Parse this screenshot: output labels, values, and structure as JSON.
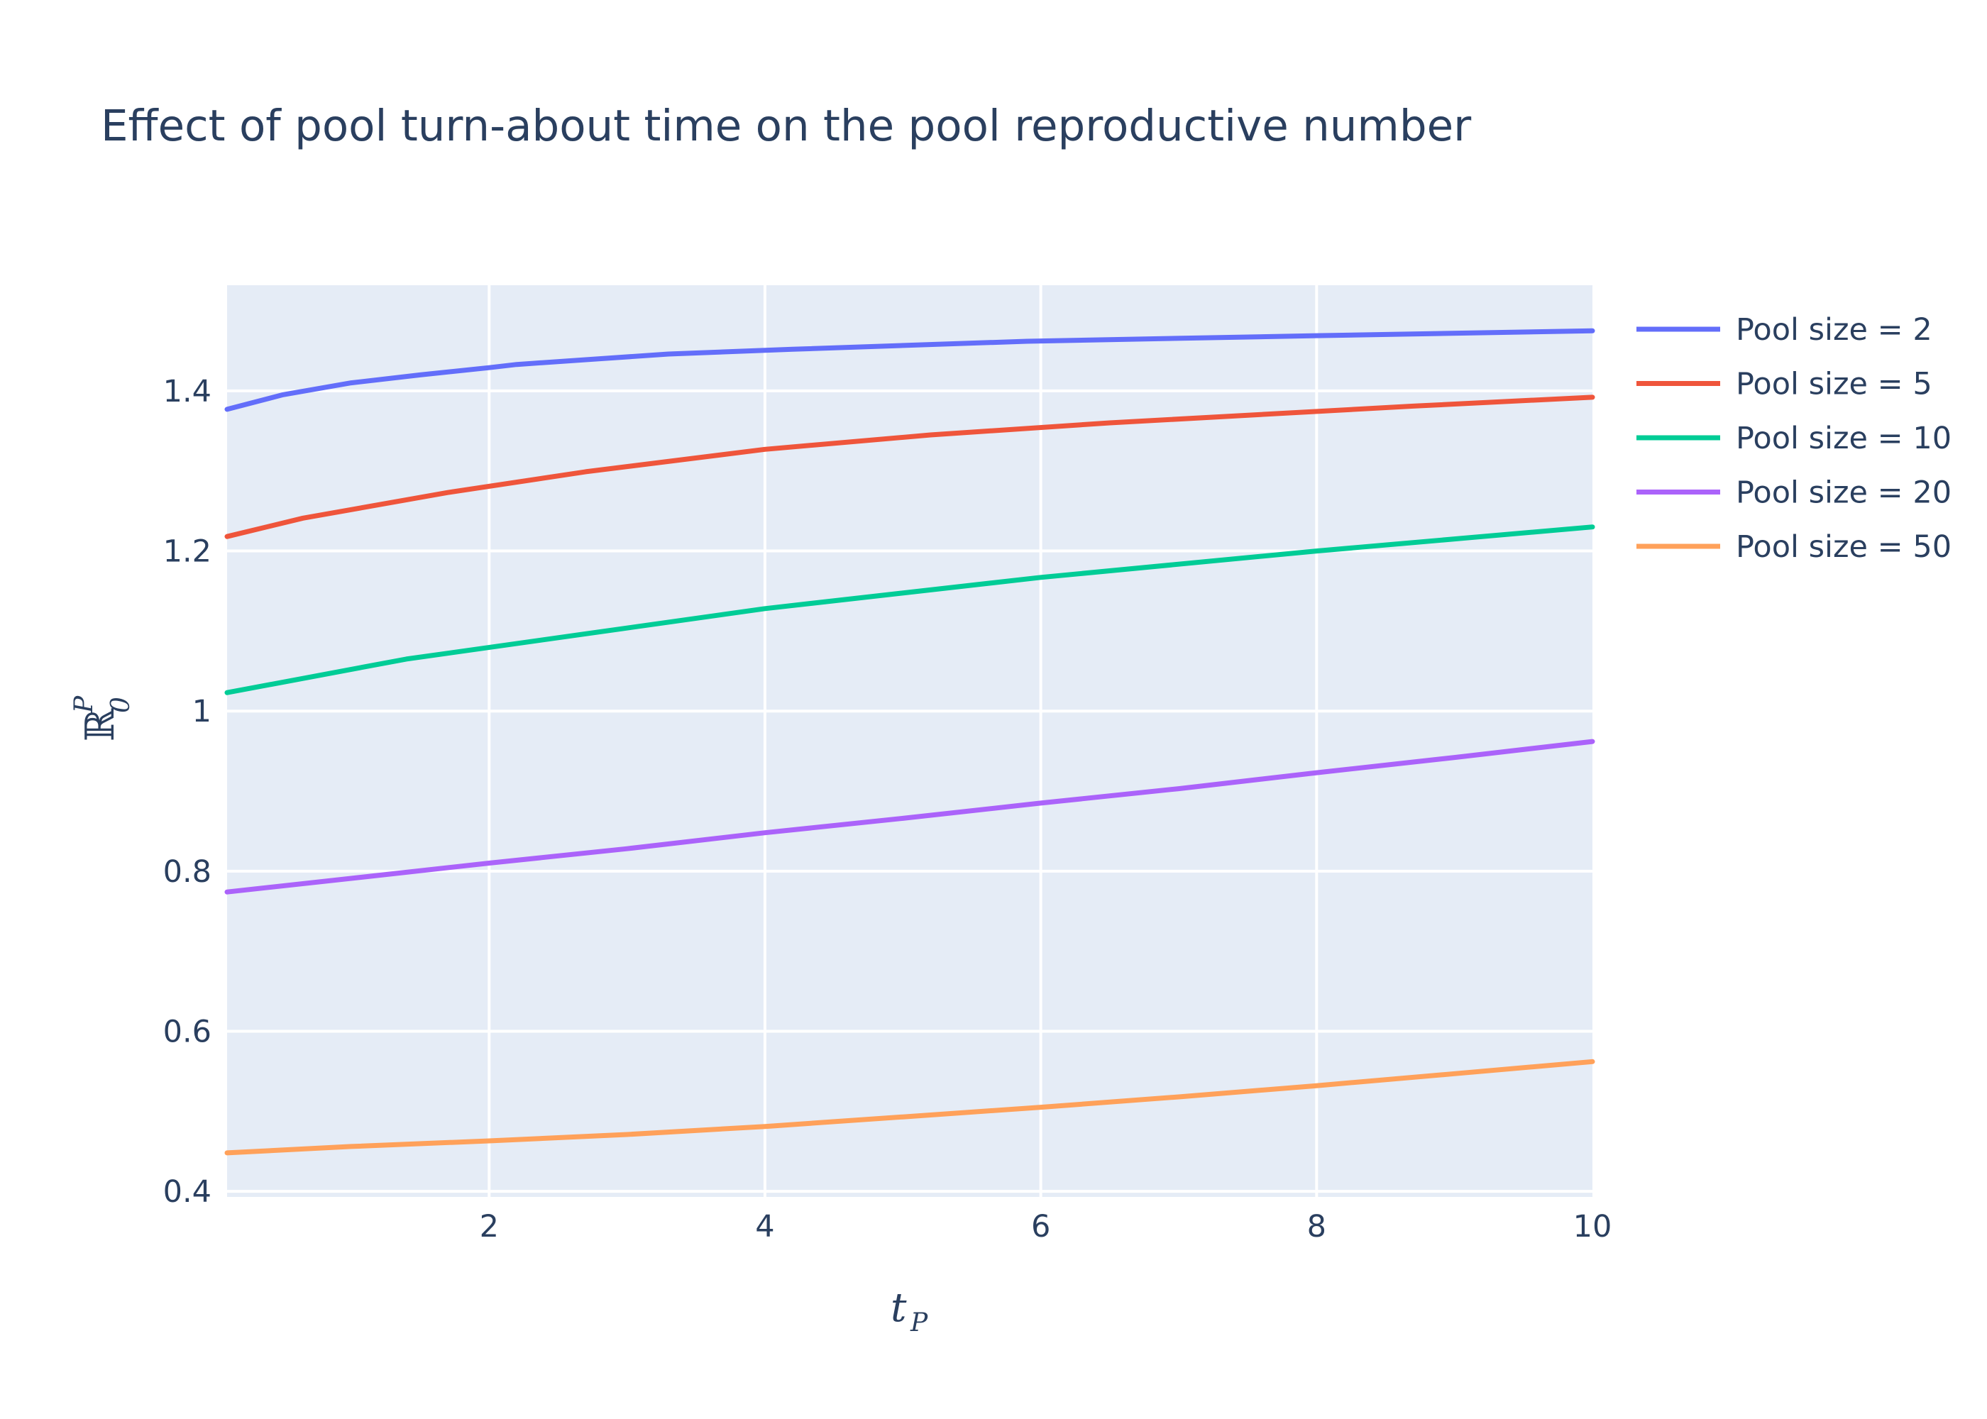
{
  "chart_data": {
    "type": "line",
    "title": "Effect of pool turn-about time on the pool reproductive number",
    "xlabel": {
      "base": "t",
      "sub": "P"
    },
    "ylabel": {
      "base": "ℝ",
      "sub": "0",
      "sup": "P"
    },
    "xlim": [
      0.1,
      10
    ],
    "ylim": [
      0.393,
      1.532
    ],
    "x_ticks": [
      2,
      4,
      6,
      8,
      10
    ],
    "x_tick_labels": [
      "2",
      "4",
      "6",
      "8",
      "10"
    ],
    "y_ticks": [
      0.4,
      0.6,
      0.8,
      1.0,
      1.2,
      1.4
    ],
    "y_tick_labels": [
      "0.4",
      "0.6",
      "0.8",
      "1",
      "1.2",
      "1.4"
    ],
    "grid": true,
    "legend_position": "top-right",
    "background": "#e5ecf6",
    "series": [
      {
        "name": "Pool size = 2",
        "color": "#636efa",
        "x": [
          0.1,
          0.5,
          1,
          1.5,
          2,
          2.2,
          3.3,
          4.2,
          5.9,
          8,
          10
        ],
        "y": [
          1.377,
          1.395,
          1.41,
          1.42,
          1.429,
          1.433,
          1.446,
          1.452,
          1.462,
          1.469,
          1.475
        ]
      },
      {
        "name": "Pool size = 5",
        "color": "#ef553b",
        "x": [
          0.1,
          0.65,
          1.7,
          2.7,
          4,
          5.2,
          6.5,
          8.7,
          10
        ],
        "y": [
          1.218,
          1.241,
          1.273,
          1.299,
          1.327,
          1.345,
          1.36,
          1.381,
          1.392
        ]
      },
      {
        "name": "Pool size = 10",
        "color": "#00cc96",
        "x": [
          0.1,
          1.4,
          4,
          6,
          8,
          10
        ],
        "y": [
          1.023,
          1.065,
          1.128,
          1.167,
          1.2,
          1.23
        ]
      },
      {
        "name": "Pool size = 20",
        "color": "#ab63fa",
        "x": [
          0.1,
          1,
          2,
          3,
          4,
          5,
          6,
          7,
          8,
          9,
          10
        ],
        "y": [
          0.774,
          0.791,
          0.81,
          0.828,
          0.848,
          0.866,
          0.885,
          0.903,
          0.923,
          0.942,
          0.962
        ]
      },
      {
        "name": "Pool size = 50",
        "color": "#ffa15a",
        "x": [
          0.1,
          1,
          2,
          3,
          4,
          5,
          6,
          7,
          8,
          9,
          10
        ],
        "y": [
          0.448,
          0.456,
          0.463,
          0.471,
          0.481,
          0.493,
          0.505,
          0.518,
          0.532,
          0.547,
          0.562
        ]
      }
    ]
  }
}
